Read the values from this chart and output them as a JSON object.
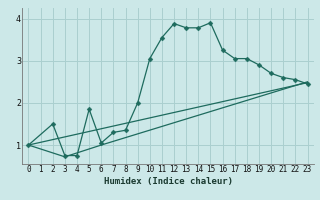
{
  "xlabel": "Humidex (Indice chaleur)",
  "bg_color": "#cce8e8",
  "line_color": "#1e6b5e",
  "grid_color": "#aacfcf",
  "xlim": [
    -0.5,
    23.5
  ],
  "ylim": [
    0.55,
    4.25
  ],
  "yticks": [
    1,
    2,
    3,
    4
  ],
  "xticks": [
    0,
    1,
    2,
    3,
    4,
    5,
    6,
    7,
    8,
    9,
    10,
    11,
    12,
    13,
    14,
    15,
    16,
    17,
    18,
    19,
    20,
    21,
    22,
    23
  ],
  "line1_x": [
    0,
    2,
    3,
    4,
    5,
    6,
    7,
    8,
    9,
    10,
    11,
    12,
    13,
    14,
    15,
    16,
    17,
    18,
    19,
    20,
    21,
    22,
    23
  ],
  "line1_y": [
    1.0,
    1.5,
    0.75,
    0.75,
    1.85,
    1.05,
    1.3,
    1.35,
    2.0,
    3.05,
    3.55,
    3.88,
    3.78,
    3.78,
    3.9,
    3.25,
    3.05,
    3.05,
    2.9,
    2.7,
    2.6,
    2.55,
    2.45
  ],
  "line2_x": [
    0,
    3,
    6,
    23
  ],
  "line2_y": [
    1.0,
    0.72,
    1.0,
    2.5
  ],
  "line3_x": [
    0,
    23
  ],
  "line3_y": [
    1.0,
    2.48
  ],
  "markersize": 2.5,
  "linewidth": 0.9,
  "xlabel_fontsize": 6.5,
  "tick_fontsize": 5.5
}
